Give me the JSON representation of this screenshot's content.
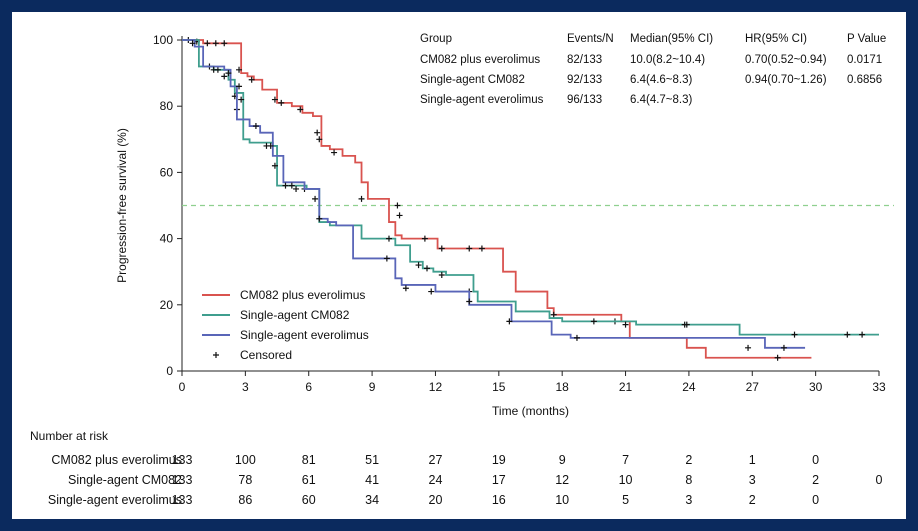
{
  "chart_data": {
    "type": "line",
    "xlabel": "Time (months)",
    "ylabel": "Progression-free survival (%)",
    "xlim": [
      0,
      33
    ],
    "ylim": [
      0,
      100
    ],
    "x_ticks": [
      0,
      3,
      6,
      9,
      12,
      15,
      18,
      21,
      24,
      27,
      30,
      33
    ],
    "y_ticks": [
      0,
      20,
      40,
      60,
      80,
      100
    ],
    "reference_line_y": 50,
    "legend": {
      "placement": "lower-left",
      "entries": [
        "CM082 plus everolimus",
        "Single-agent CM082",
        "Single-agent everolimus",
        "Censored"
      ]
    },
    "series": [
      {
        "name": "CM082 plus everolimus",
        "color": "#d9534f",
        "x": [
          0,
          1.0,
          2.5,
          2.8,
          3.1,
          3.4,
          3.8,
          4.5,
          5.2,
          5.7,
          6.2,
          6.6,
          7.0,
          7.6,
          8.2,
          8.5,
          8.8,
          9.8,
          10.1,
          10.4,
          12.1,
          13.3,
          15.2,
          15.8,
          17.3,
          17.6,
          20.8,
          21.2,
          23.9,
          24.8,
          29.8
        ],
        "y": [
          100,
          99,
          99,
          90,
          89,
          88,
          85,
          81,
          80,
          78,
          77,
          68,
          67,
          65,
          63,
          57,
          52,
          45,
          41,
          40,
          37,
          37,
          30,
          24,
          19,
          17,
          15,
          10,
          7,
          4,
          4
        ],
        "censored": [
          [
            0.3,
            100
          ],
          [
            0.7,
            99.5
          ],
          [
            1.2,
            99
          ],
          [
            1.6,
            99
          ],
          [
            2.0,
            99
          ],
          [
            2.7,
            91
          ],
          [
            3.3,
            88
          ],
          [
            4.4,
            82
          ],
          [
            4.7,
            81
          ],
          [
            5.6,
            79
          ],
          [
            6.4,
            72
          ],
          [
            6.5,
            70
          ],
          [
            7.2,
            66
          ],
          [
            8.5,
            52
          ],
          [
            10.2,
            50
          ],
          [
            10.3,
            47
          ],
          [
            11.5,
            40
          ],
          [
            12.3,
            37
          ],
          [
            13.6,
            37
          ],
          [
            14.2,
            37
          ],
          [
            17.6,
            17
          ],
          [
            20.5,
            15
          ],
          [
            28.2,
            4
          ]
        ]
      },
      {
        "name": "Single-agent CM082",
        "color": "#3f9e8e",
        "x": [
          0,
          0.8,
          1.5,
          2.2,
          2.5,
          2.9,
          3.2,
          4.3,
          4.5,
          5.9,
          6.5,
          7.0,
          8.5,
          9.8,
          10.1,
          10.8,
          11.4,
          11.9,
          12.5,
          13.8,
          14.0,
          15.8,
          17.4,
          18.0,
          21.5,
          26.4,
          33.0
        ],
        "y": [
          100,
          92,
          91,
          88,
          84,
          70,
          69,
          68,
          56,
          55,
          45,
          44,
          40,
          40,
          38,
          33,
          31,
          30,
          29,
          24,
          21,
          18,
          16,
          15,
          14,
          11,
          11
        ],
        "censored": [
          [
            1.3,
            92
          ],
          [
            1.7,
            91
          ],
          [
            2.0,
            89
          ],
          [
            2.5,
            83
          ],
          [
            2.6,
            79
          ],
          [
            4.0,
            68
          ],
          [
            5.8,
            55
          ],
          [
            6.3,
            52
          ],
          [
            9.8,
            40
          ],
          [
            11.2,
            32
          ],
          [
            11.6,
            31
          ],
          [
            12.3,
            29
          ],
          [
            13.6,
            24
          ],
          [
            19.5,
            15
          ],
          [
            21.0,
            14
          ],
          [
            23.8,
            14
          ],
          [
            23.9,
            14
          ],
          [
            29.0,
            11
          ],
          [
            31.5,
            11
          ],
          [
            32.2,
            11
          ]
        ]
      },
      {
        "name": "Single-agent everolimus",
        "color": "#5965b8",
        "x": [
          0,
          0.6,
          1.0,
          2.0,
          2.3,
          2.6,
          3.2,
          3.7,
          4.3,
          4.8,
          5.8,
          6.5,
          6.9,
          7.3,
          8.1,
          10.1,
          10.4,
          12.0,
          13.6,
          15.6,
          17.5,
          18.4,
          21.4,
          26.4,
          27.6,
          29.5
        ],
        "y": [
          100,
          98,
          92,
          91,
          86,
          76,
          74,
          72,
          65,
          57,
          55,
          46,
          45,
          44,
          34,
          28,
          26,
          24,
          20,
          15,
          11,
          10,
          10,
          10,
          7,
          7
        ],
        "censored": [
          [
            0.5,
            99
          ],
          [
            1.5,
            91
          ],
          [
            2.2,
            90
          ],
          [
            2.7,
            86
          ],
          [
            2.8,
            82
          ],
          [
            3.5,
            74
          ],
          [
            4.2,
            68
          ],
          [
            4.4,
            62
          ],
          [
            4.9,
            56
          ],
          [
            5.2,
            56
          ],
          [
            5.4,
            55
          ],
          [
            6.5,
            46
          ],
          [
            9.7,
            34
          ],
          [
            10.6,
            25
          ],
          [
            11.8,
            24
          ],
          [
            13.6,
            21
          ],
          [
            15.5,
            15
          ],
          [
            18.7,
            10
          ],
          [
            26.8,
            7
          ],
          [
            28.5,
            7
          ]
        ]
      }
    ],
    "stats_table": {
      "headers": [
        "Group",
        "Events/N",
        "Median(95% CI)",
        "HR(95% CI)",
        "P Value"
      ],
      "rows": [
        [
          "CM082 plus everolimus",
          "82/133",
          "10.0(8.2~10.4)",
          "0.70(0.52~0.94)",
          "0.0171"
        ],
        [
          "Single-agent CM082",
          "92/133",
          "6.4(4.6~8.3)",
          "0.94(0.70~1.26)",
          "0.6856"
        ],
        [
          "Single-agent everolimus",
          "96/133",
          "6.4(4.7~8.3)",
          "",
          ""
        ]
      ]
    },
    "risk_table": {
      "title": "Number at risk",
      "times": [
        0,
        3,
        6,
        9,
        12,
        15,
        18,
        21,
        24,
        27,
        30,
        33
      ],
      "rows": [
        {
          "label": "CM082 plus everolimus",
          "values": [
            133,
            100,
            81,
            51,
            27,
            19,
            9,
            7,
            2,
            1,
            0,
            null
          ]
        },
        {
          "label": "Single-agent CM082",
          "values": [
            133,
            78,
            61,
            41,
            24,
            17,
            12,
            10,
            8,
            3,
            2,
            0
          ]
        },
        {
          "label": "Single-agent everolimus",
          "values": [
            133,
            86,
            60,
            34,
            20,
            16,
            10,
            5,
            3,
            2,
            0,
            null
          ]
        }
      ]
    }
  }
}
